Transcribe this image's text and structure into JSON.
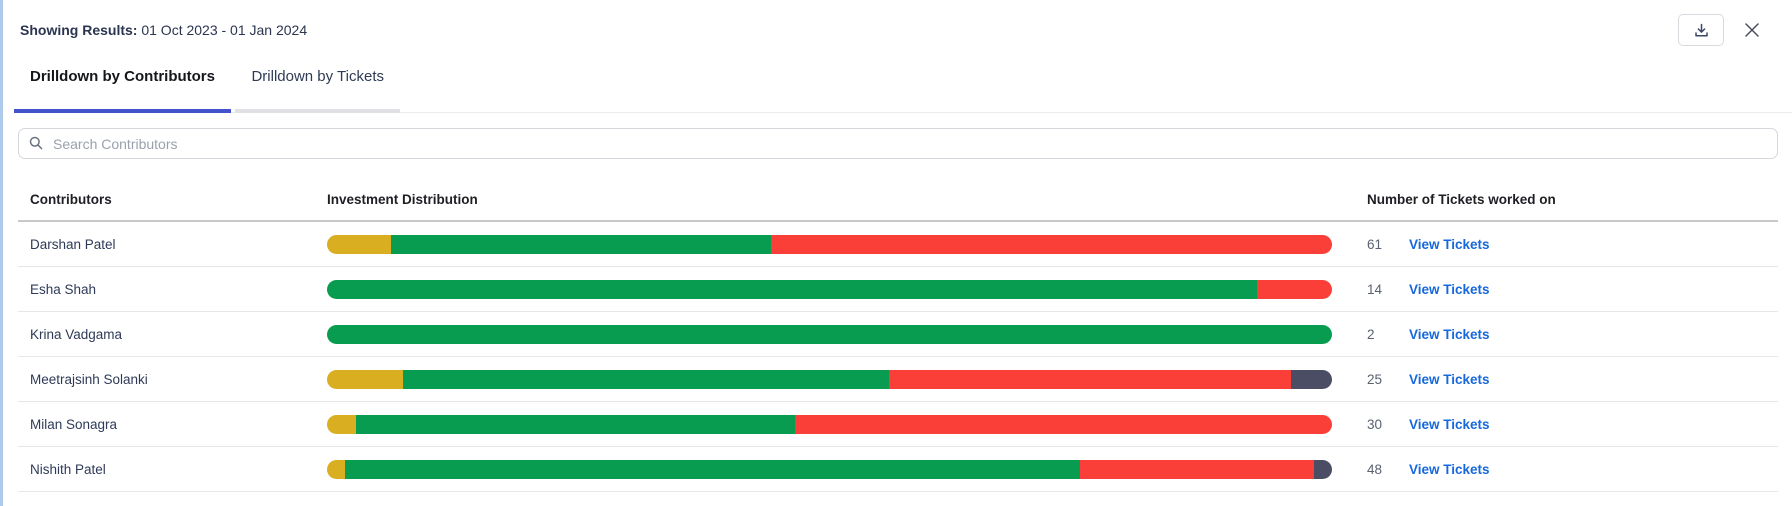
{
  "header": {
    "label": "Showing Results:",
    "date_range": "01 Oct 2023 - 01 Jan 2024"
  },
  "tabs": [
    {
      "label": "Drilldown by Contributors",
      "active": true
    },
    {
      "label": "Drilldown by Tickets",
      "active": false
    }
  ],
  "search": {
    "placeholder": "Search Contributors"
  },
  "table": {
    "columns": [
      "Contributors",
      "Investment Distribution",
      "Number of Tickets worked on"
    ],
    "view_tickets_label": "View Tickets",
    "rows": [
      {
        "name": "Darshan Patel",
        "tickets": "61",
        "segments": [
          {
            "color": "#D9AE21",
            "pct": 6.4
          },
          {
            "color": "#089C51",
            "pct": 37.8
          },
          {
            "color": "#FA3E38",
            "pct": 55.8
          }
        ]
      },
      {
        "name": "Esha Shah",
        "tickets": "14",
        "segments": [
          {
            "color": "#089C51",
            "pct": 92.5
          },
          {
            "color": "#FA3E38",
            "pct": 7.5
          }
        ]
      },
      {
        "name": "Krina Vadgama",
        "tickets": "2",
        "segments": [
          {
            "color": "#089C51",
            "pct": 100
          }
        ]
      },
      {
        "name": "Meetrajsinh Solanki",
        "tickets": "25",
        "segments": [
          {
            "color": "#D9AE21",
            "pct": 7.6
          },
          {
            "color": "#089C51",
            "pct": 48.3
          },
          {
            "color": "#FA3E38",
            "pct": 40.0
          },
          {
            "color": "#4A4D64",
            "pct": 4.1
          }
        ]
      },
      {
        "name": "Milan Sonagra",
        "tickets": "30",
        "segments": [
          {
            "color": "#D9AE21",
            "pct": 2.9
          },
          {
            "color": "#089C51",
            "pct": 43.7
          },
          {
            "color": "#FA3E38",
            "pct": 53.4
          }
        ]
      },
      {
        "name": "Nishith Patel",
        "tickets": "48",
        "segments": [
          {
            "color": "#D9AE21",
            "pct": 1.8
          },
          {
            "color": "#089C51",
            "pct": 73.1
          },
          {
            "color": "#FA3E38",
            "pct": 23.3
          },
          {
            "color": "#4A4D64",
            "pct": 1.8
          }
        ]
      }
    ]
  },
  "colors": {
    "accent_tab": "#4353CB",
    "link_blue": "#1668DC",
    "bar_gold": "#D9AE21",
    "bar_green": "#089C51",
    "bar_red": "#FA3E38",
    "bar_slate": "#4A4D64",
    "left_edge_line": "#AECBEB",
    "header_divider": "#C7C9CB"
  }
}
